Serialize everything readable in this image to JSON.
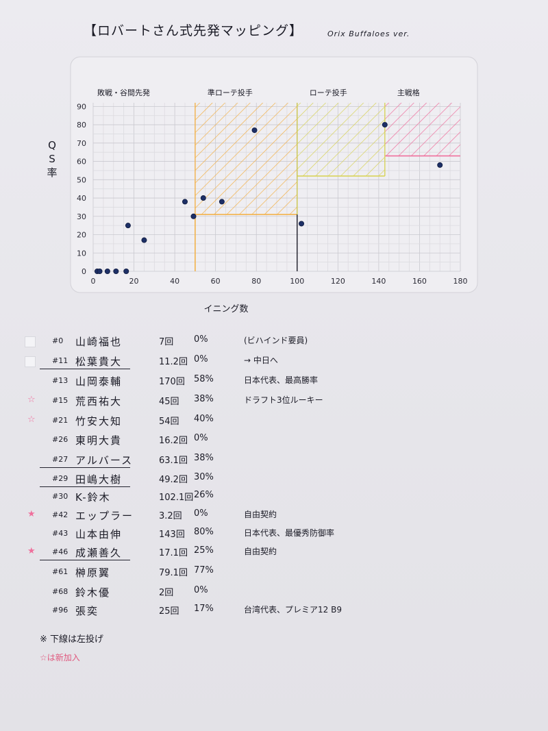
{
  "header": {
    "title": "【ロバートさん式先発マッピング】",
    "subtitle": "Orix Buffaloes ver."
  },
  "chart_data": {
    "type": "scatter",
    "title": "",
    "xlabel": "イニング数",
    "ylabel": "QS率",
    "xlim": [
      0,
      180
    ],
    "ylim": [
      0,
      90
    ],
    "xticks": [
      "0",
      "20",
      "40",
      "60",
      "80",
      "100",
      "120",
      "140",
      "160",
      "180"
    ],
    "yticks": [
      "0",
      "10",
      "20",
      "30",
      "40",
      "50",
      "60",
      "70",
      "80",
      "90"
    ],
    "grid": true,
    "regions": [
      {
        "label": "敗戦・谷間先発",
        "x_from": 0,
        "x_to": 50,
        "color": "none"
      },
      {
        "label": "準ローテ投手",
        "x_from": 50,
        "x_to": 100,
        "y_from": 31,
        "y_to": 92,
        "color": "#f3b24a"
      },
      {
        "label": "ローテ投手",
        "x_from": 100,
        "x_to": 143,
        "y_from": 52,
        "y_to": 92,
        "color": "#d8d35a"
      },
      {
        "label": "主戦格",
        "x_from": 143,
        "x_to": 180,
        "y_from": 63,
        "y_to": 92,
        "color": "#ef6f9c"
      }
    ],
    "points": [
      {
        "x": 2,
        "y": 0
      },
      {
        "x": 3.2,
        "y": 0
      },
      {
        "x": 7,
        "y": 0
      },
      {
        "x": 11.2,
        "y": 0
      },
      {
        "x": 16.2,
        "y": 0
      },
      {
        "x": 17.1,
        "y": 25
      },
      {
        "x": 25,
        "y": 17
      },
      {
        "x": 45,
        "y": 38
      },
      {
        "x": 49.2,
        "y": 30
      },
      {
        "x": 54,
        "y": 40
      },
      {
        "x": 63.1,
        "y": 38
      },
      {
        "x": 79.1,
        "y": 77
      },
      {
        "x": 102.1,
        "y": 26
      },
      {
        "x": 143,
        "y": 80
      },
      {
        "x": 170,
        "y": 58
      }
    ]
  },
  "roster": [
    {
      "no": "#0",
      "name": "山崎福也",
      "ip": "7回",
      "qs": "0%",
      "note": "(ビハインド要員)",
      "mark": "box",
      "underline": false
    },
    {
      "no": "#11",
      "name": "松葉貴大",
      "ip": "11.2回",
      "qs": "0%",
      "note": "→ 中日へ",
      "mark": "box",
      "underline": true
    },
    {
      "no": "#13",
      "name": "山岡泰輔",
      "ip": "170回",
      "qs": "58%",
      "note": "日本代表、最高勝率",
      "mark": "",
      "underline": false
    },
    {
      "no": "#15",
      "name": "荒西祐大",
      "ip": "45回",
      "qs": "38%",
      "note": "ドラフト3位ルーキー",
      "mark": "star",
      "underline": false
    },
    {
      "no": "#21",
      "name": "竹安大知",
      "ip": "54回",
      "qs": "40%",
      "note": "",
      "mark": "star",
      "underline": false
    },
    {
      "no": "#26",
      "name": "東明大貴",
      "ip": "16.2回",
      "qs": "0%",
      "note": "",
      "mark": "",
      "underline": false
    },
    {
      "no": "#27",
      "name": "アルバース",
      "ip": "63.1回",
      "qs": "38%",
      "note": "",
      "mark": "",
      "underline": true
    },
    {
      "no": "#29",
      "name": "田嶋大樹",
      "ip": "49.2回",
      "qs": "30%",
      "note": "",
      "mark": "",
      "underline": true
    },
    {
      "no": "#30",
      "name": "K-鈴木",
      "ip": "102.1回",
      "qs": "26%",
      "note": "",
      "mark": "",
      "underline": false
    },
    {
      "no": "#42",
      "name": "エップラー",
      "ip": "3.2回",
      "qs": "0%",
      "note": "自由契約",
      "mark": "star-filled",
      "underline": false
    },
    {
      "no": "#43",
      "name": "山本由伸",
      "ip": "143回",
      "qs": "80%",
      "note": "日本代表、最優秀防御率",
      "mark": "",
      "underline": false
    },
    {
      "no": "#46",
      "name": "成瀬善久",
      "ip": "17.1回",
      "qs": "25%",
      "note": "自由契約",
      "mark": "star-filled",
      "underline": true
    },
    {
      "no": "#61",
      "name": "榊原翼",
      "ip": "79.1回",
      "qs": "77%",
      "note": "",
      "mark": "",
      "underline": false
    },
    {
      "no": "#68",
      "name": "鈴木優",
      "ip": "2回",
      "qs": "0%",
      "note": "",
      "mark": "",
      "underline": false
    },
    {
      "no": "#96",
      "name": "張奕",
      "ip": "25回",
      "qs": "17%",
      "note": "台湾代表、プレミア12 B9",
      "mark": "",
      "underline": false
    }
  ],
  "footnotes": {
    "underline_note": "※ 下線は左投げ",
    "new_note": "☆は新加入"
  },
  "colors": {
    "ink": "#1b1b26",
    "dot": "#1d2f66",
    "orange": "#f3b24a",
    "yellow": "#d8d35a",
    "pink": "#ef6f9c"
  }
}
